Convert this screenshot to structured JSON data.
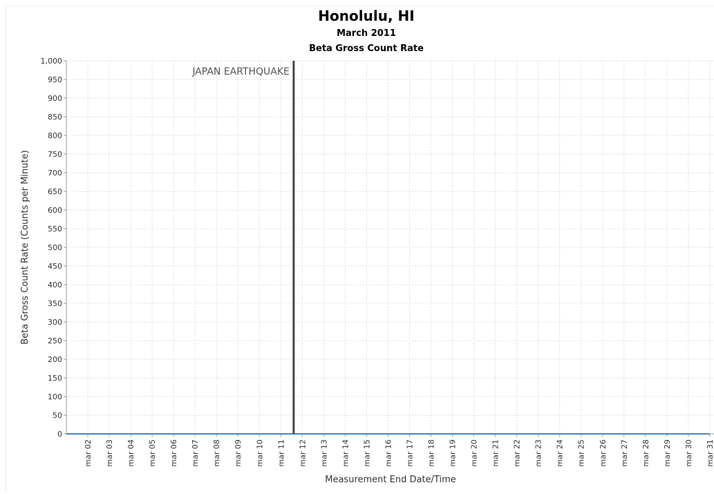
{
  "chart_data": {
    "type": "line",
    "title": "Honolulu, HI",
    "subtitle_1": "March 2011",
    "subtitle_2": "Beta Gross Count Rate",
    "xlabel": "Measurement End Date/Time",
    "ylabel": "Beta Gross Count Rate (Counts per Minute)",
    "ylim": [
      0,
      1000
    ],
    "y_ticks": [
      "0",
      "50",
      "100",
      "150",
      "200",
      "250",
      "300",
      "350",
      "400",
      "450",
      "500",
      "550",
      "600",
      "650",
      "700",
      "750",
      "800",
      "850",
      "900",
      "950",
      "1,000"
    ],
    "y_tick_values": [
      0,
      50,
      100,
      150,
      200,
      250,
      300,
      350,
      400,
      450,
      500,
      550,
      600,
      650,
      700,
      750,
      800,
      850,
      900,
      950,
      1000
    ],
    "x_ticks": [
      "mar 02",
      "mar 03",
      "mar 04",
      "mar 05",
      "mar 06",
      "mar 07",
      "mar 08",
      "mar 09",
      "mar 10",
      "mar 11",
      "mar 12",
      "mar 13",
      "mar 14",
      "mar 15",
      "mar 16",
      "mar 17",
      "mar 18",
      "mar 19",
      "mar 20",
      "mar 21",
      "mar 22",
      "mar 23",
      "mar 24",
      "mar 25",
      "mar 26",
      "mar 27",
      "mar 28",
      "mar 29",
      "mar 30",
      "mar 31"
    ],
    "xlim_days": [
      1.0,
      31.0
    ],
    "grid": true,
    "series": [
      {
        "x_days": [
          1.0,
          31.0
        ],
        "values": [
          0,
          0
        ],
        "color": "#4f81bd"
      }
    ],
    "annotation": {
      "text": "JAPAN EARTHQUAKE",
      "x_day": 11.6,
      "color": "#444444"
    }
  }
}
